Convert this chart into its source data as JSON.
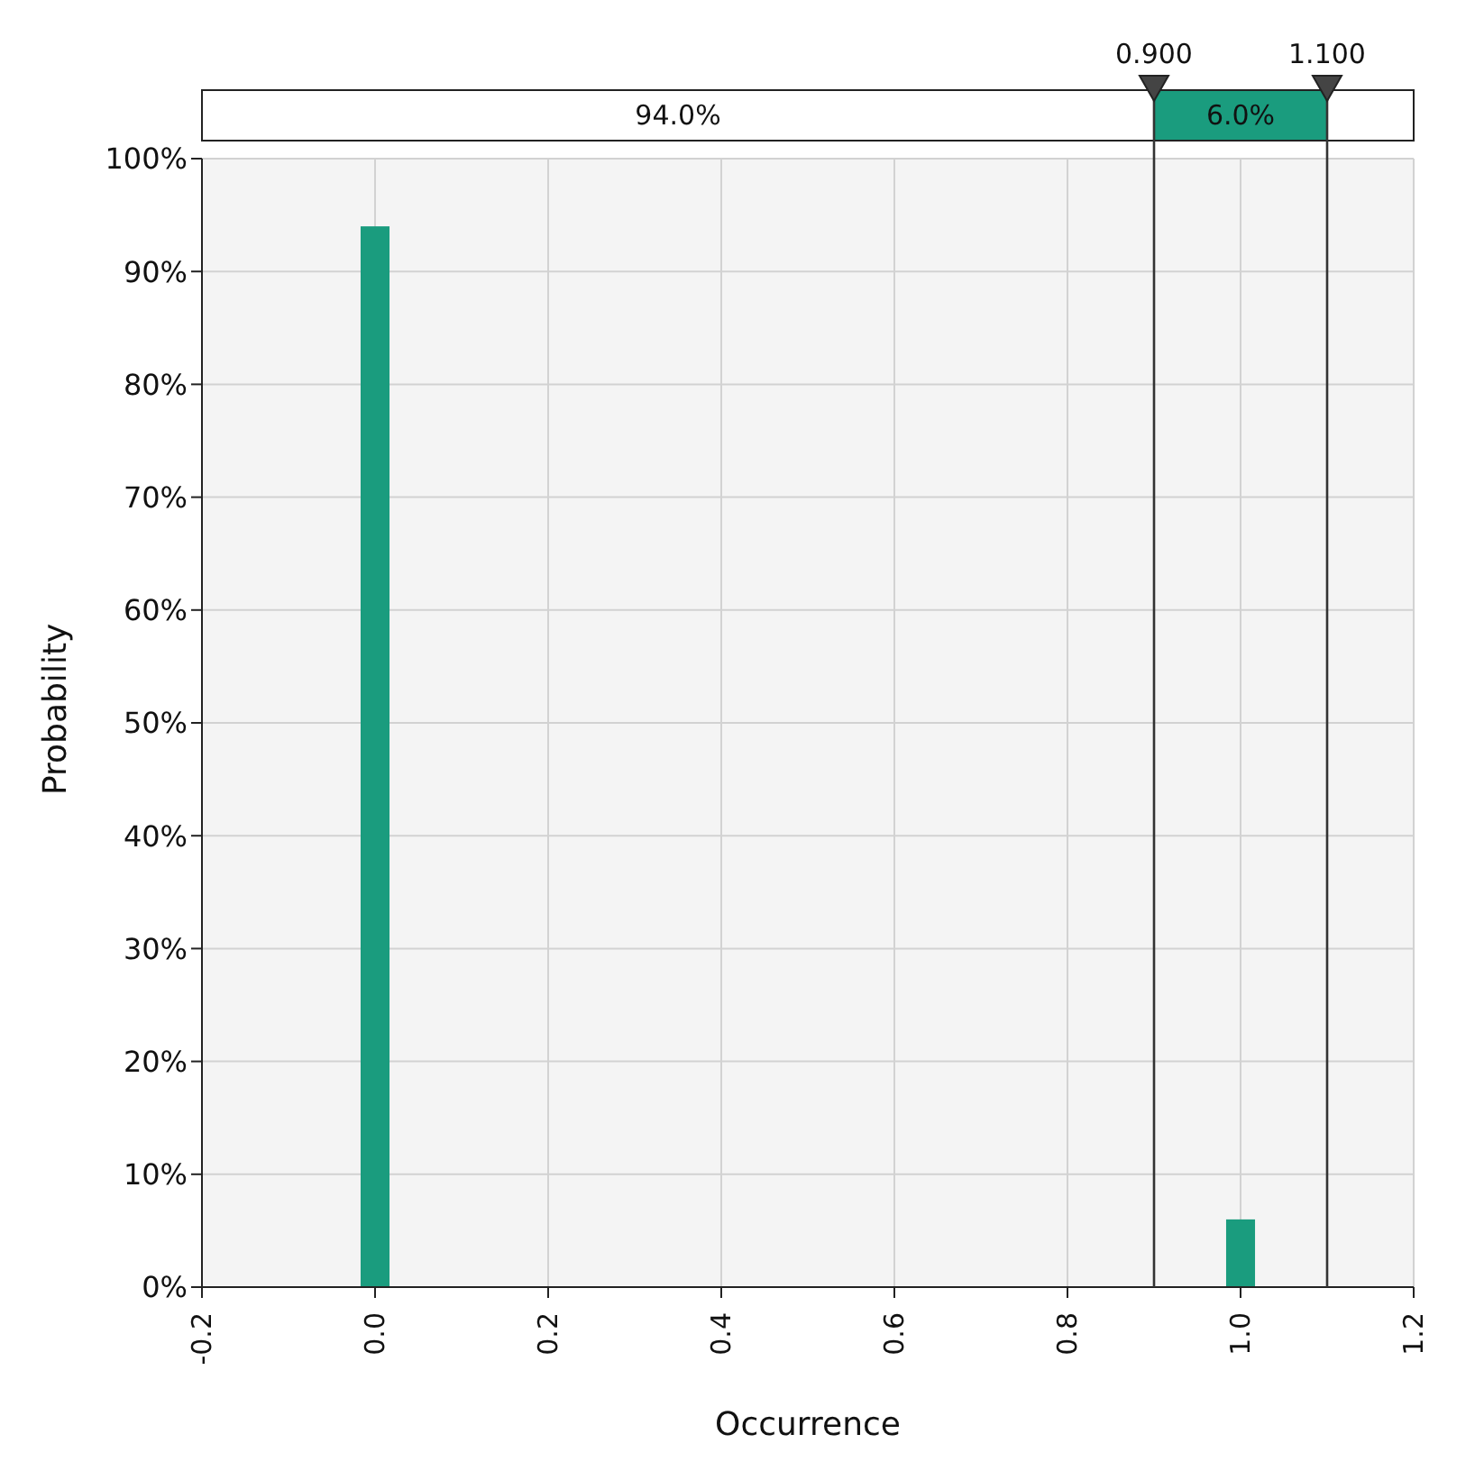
{
  "chart_data": {
    "type": "histogram",
    "xlabel": "Occurrence",
    "ylabel": "Probability",
    "bins": [
      -0.0167,
      0.0167,
      0.9833,
      1.0167
    ],
    "values": [
      94,
      0,
      6
    ],
    "color": "#1a9c7e",
    "xlim": [
      -0.2,
      1.2
    ],
    "xticks": [
      -0.2,
      {
        "value": 0,
        "label": "0.0"
      },
      0.2,
      0.4,
      0.6,
      0.8,
      {
        "value": 1,
        "label": "1.0"
      },
      1.2
    ],
    "ylim": [
      0,
      100
    ],
    "yticks": [
      {
        "value": 0,
        "label": "0%"
      },
      {
        "value": 10,
        "label": "10%"
      },
      {
        "value": 20,
        "label": "20%"
      },
      {
        "value": 30,
        "label": "30%"
      },
      {
        "value": 40,
        "label": "40%"
      },
      {
        "value": 50,
        "label": "50%"
      },
      {
        "value": 60,
        "label": "60%"
      },
      {
        "value": 70,
        "label": "70%"
      },
      {
        "value": 80,
        "label": "80%"
      },
      {
        "value": 90,
        "label": "90%"
      },
      {
        "value": 100,
        "label": "100%"
      }
    ],
    "grid": true,
    "ref_lines": [
      {
        "axis": "x",
        "value": 0.9,
        "label": "0.900",
        "color": "#333333"
      },
      {
        "axis": "x",
        "value": 1.1,
        "label": "1.100",
        "color": "#333333"
      }
    ],
    "annotations": [
      "94.0%",
      "6.0%"
    ]
  }
}
